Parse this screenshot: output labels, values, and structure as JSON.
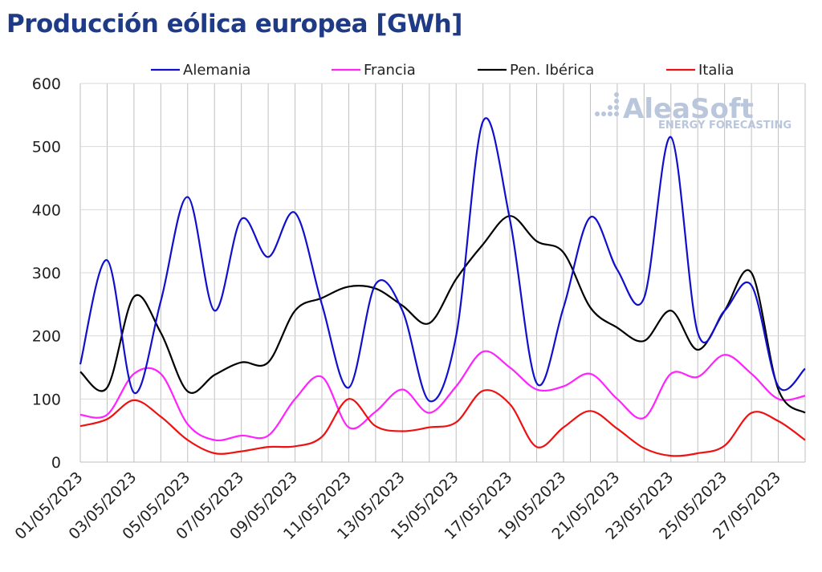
{
  "chart_data": {
    "type": "line",
    "title": "Producción eólica europea [GWh]",
    "ylim": [
      0,
      600
    ],
    "yticks": [
      "0",
      "100",
      "200",
      "300",
      "400",
      "500",
      "600"
    ],
    "xticks": [
      "01/05/2023",
      "03/05/2023",
      "05/05/2023",
      "07/05/2023",
      "09/05/2023",
      "11/05/2023",
      "13/05/2023",
      "15/05/2023",
      "17/05/2023",
      "19/05/2023",
      "21/05/2023",
      "23/05/2023",
      "25/05/2023",
      "27/05/2023"
    ],
    "legend_position": "top",
    "grid": true,
    "days": 28,
    "series": [
      {
        "name": "Alemania",
        "color": "#1010cc",
        "values": [
          155,
          320,
          110,
          255,
          420,
          240,
          385,
          325,
          395,
          250,
          118,
          282,
          240,
          97,
          200,
          540,
          385,
          125,
          245,
          388,
          305,
          260,
          515,
          205,
          240,
          280,
          120,
          148
        ]
      },
      {
        "name": "Francia",
        "color": "#ff22ff",
        "values": [
          75,
          75,
          140,
          140,
          60,
          35,
          42,
          42,
          100,
          135,
          55,
          80,
          115,
          78,
          120,
          175,
          150,
          115,
          120,
          140,
          100,
          70,
          140,
          135,
          170,
          140,
          100,
          105
        ]
      },
      {
        "name": "Pen. Ibérica",
        "color": "#000000",
        "values": [
          143,
          118,
          262,
          205,
          112,
          138,
          158,
          158,
          240,
          260,
          278,
          275,
          248,
          220,
          290,
          345,
          390,
          350,
          332,
          245,
          213,
          192,
          240,
          178,
          240,
          300,
          115,
          78
        ]
      },
      {
        "name": "Italia",
        "color": "#ee1111",
        "values": [
          57,
          68,
          98,
          72,
          35,
          14,
          17,
          24,
          25,
          40,
          100,
          57,
          49,
          55,
          63,
          113,
          92,
          24,
          55,
          81,
          53,
          22,
          10,
          14,
          26,
          78,
          65,
          35
        ]
      }
    ]
  },
  "watermark": {
    "brand": "AleaSoft",
    "tagline": "ENERGY FORECASTING"
  }
}
